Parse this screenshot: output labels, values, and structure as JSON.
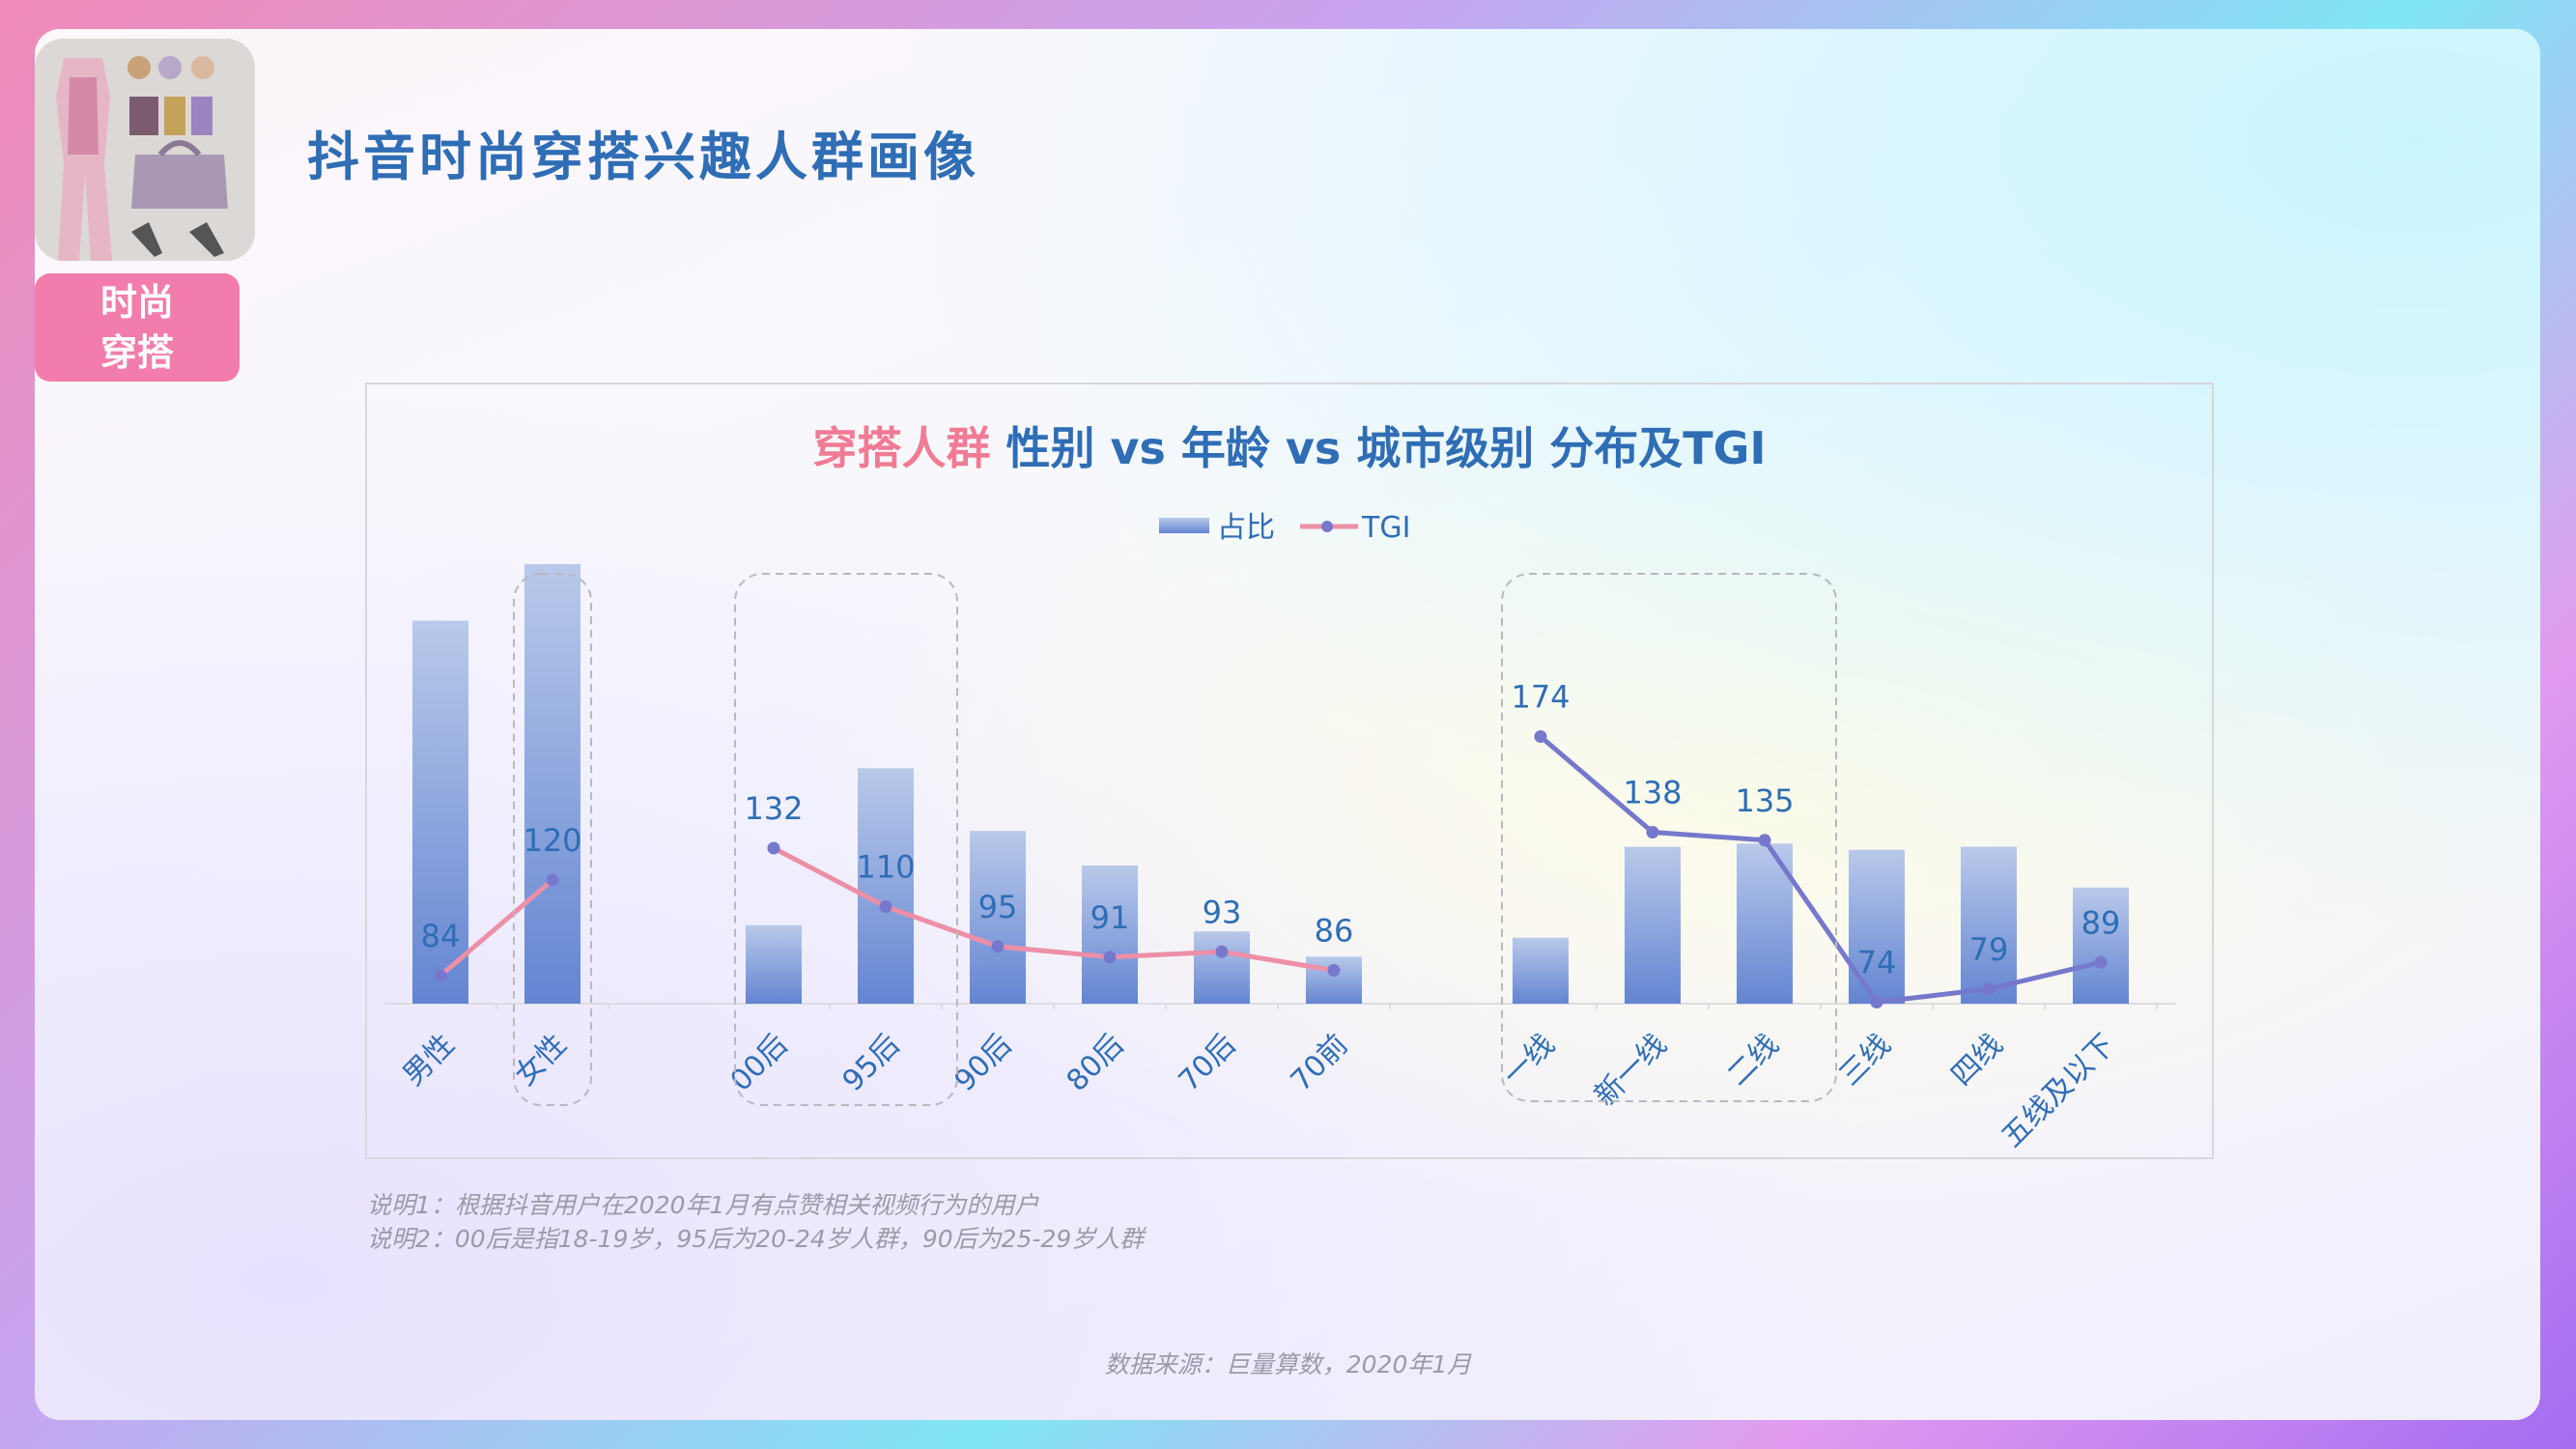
{
  "page": {
    "title": "抖音时尚穿搭兴趣人群画像",
    "badge_line1": "时尚",
    "badge_line2": "穿搭",
    "thumbnail": "fashion-outfit-collage-image"
  },
  "chart_title": {
    "highlight": "穿搭人群",
    "rest": " 性别 vs 年龄 vs 城市级别 分布及TGI"
  },
  "notes": {
    "note1": "说明1：根据抖音用户在2020年1月有点赞相关视频行为的用户",
    "note2": "说明2：00后是指18-19岁，95后为20-24岁人群，90后为25-29岁人群"
  },
  "source": "数据来源：巨量算数，2020年1月",
  "colors": {
    "bar_top": "#b9c9ea",
    "bar_bottom": "#6385d2",
    "line_pink": "#ec8fa7",
    "line_purple": "#7678cc",
    "axis_text": "#2f6db5",
    "title_blue": "#2f6db5",
    "title_pink": "#f07b94"
  },
  "chart_data": {
    "type": "bar",
    "legend": [
      "占比",
      "TGI"
    ],
    "groups": [
      {
        "name": "gender",
        "categories": [
          "男性",
          "女性"
        ],
        "share": [
          61,
          70
        ],
        "tgi": [
          84,
          120
        ],
        "line_color": "#ec8fa7"
      },
      {
        "name": "age",
        "categories": [
          "00后",
          "95后",
          "90后",
          "80后",
          "70后",
          "70前"
        ],
        "share": [
          12.5,
          37.5,
          27.5,
          22,
          11.5,
          7.5
        ],
        "tgi": [
          132,
          110,
          95,
          91,
          93,
          86
        ],
        "line_color": "#ec8fa7"
      },
      {
        "name": "city",
        "categories": [
          "一线",
          "新一线",
          "二线",
          "三线",
          "四线",
          "五线及以下"
        ],
        "share": [
          10.5,
          25,
          25.5,
          24.5,
          25,
          18.5
        ],
        "tgi": [
          174,
          138,
          135,
          74,
          79,
          89
        ],
        "line_color": "#7678cc"
      }
    ],
    "highlight_boxes": [
      [
        "女性"
      ],
      [
        "00后",
        "95后"
      ],
      [
        "一线",
        "新一线",
        "二线"
      ]
    ]
  }
}
